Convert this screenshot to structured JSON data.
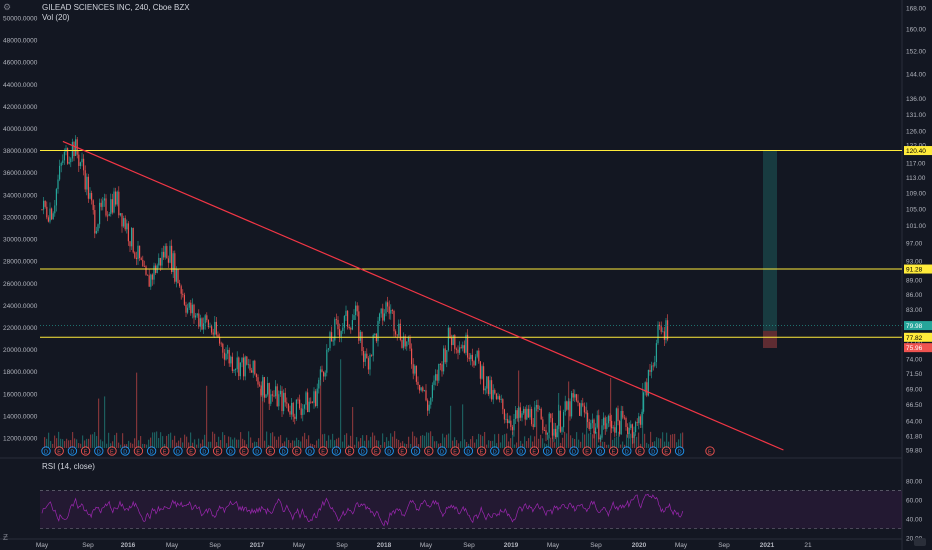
{
  "header": {
    "title": "GILEAD SCIENCES INC, 240, Cboe BZX",
    "vol": "Vol (20)"
  },
  "rsi": {
    "label": "RSI (14, close)"
  },
  "price_ticks": [
    "168.00",
    "160.00",
    "152.00",
    "144.00",
    "136.00",
    "131.00",
    "126.00",
    "122.00",
    "117.00",
    "113.00",
    "109.00",
    "105.00",
    "101.00",
    "97.00",
    "93.00",
    "89.00",
    "86.00",
    "83.00",
    "80.00",
    "77.00",
    "74.00",
    "71.50",
    "69.00",
    "66.50",
    "64.00",
    "61.80",
    "59.80"
  ],
  "volume_ticks": [
    "50000.0000",
    "48000.0000",
    "46000.0000",
    "44000.0000",
    "42000.0000",
    "40000.0000",
    "38000.0000",
    "36000.0000",
    "34000.0000",
    "32000.0000",
    "30000.0000",
    "28000.0000",
    "26000.0000",
    "24000.0000",
    "22000.0000",
    "20000.0000",
    "18000.0000",
    "16000.0000",
    "14000.0000",
    "12000.0000"
  ],
  "rsi_ticks": [
    "80.00",
    "60.00",
    "40.00",
    "20.00"
  ],
  "time_ticks": [
    "May",
    "Sep",
    "2016",
    "May",
    "Sep",
    "2017",
    "May",
    "Sep",
    "2018",
    "May",
    "Sep",
    "2019",
    "May",
    "Sep",
    "2020",
    "May",
    "Sep",
    "2021",
    "21"
  ],
  "price_badges": [
    {
      "text": "120.40",
      "color": "#ffeb3b",
      "text_color": "#000000"
    },
    {
      "text": "91.28",
      "color": "#ffeb3b",
      "text_color": "#000000"
    },
    {
      "text": "79.98",
      "color": "#26a69a",
      "text_color": "#ffffff"
    },
    {
      "text": "77.82",
      "color": "#ffeb3b",
      "text_color": "#000000"
    },
    {
      "text": "75.96",
      "color": "#ef5350",
      "text_color": "#ffffff"
    }
  ],
  "corner_icons": {
    "top_left": "settings-icon",
    "bottom_left": "zoom-icon"
  },
  "colors": {
    "background": "#131722",
    "up": "#26a69a",
    "down": "#ef5350",
    "horizontal_level": "#ffeb3b",
    "trendline": "#f23645",
    "rsi": "#9c27b0",
    "target_zone": "#26a69a"
  },
  "chart_data": {
    "type": "candlestick",
    "symbol": "GILEAD SCIENCES INC",
    "interval": "240",
    "exchange": "Cboe BZX",
    "price_axis": {
      "ticks": [
        168,
        160,
        152,
        144,
        136,
        131,
        126,
        122,
        117,
        113,
        109,
        105,
        101,
        97,
        93,
        89,
        86,
        83,
        80,
        77,
        74,
        71.5,
        69,
        66.5,
        64,
        61.8,
        59.8
      ],
      "scale": "log"
    },
    "horizontal_levels": [
      120.4,
      91.28,
      77.82
    ],
    "last_price": 79.98,
    "trendline": {
      "from": [
        "2015-06",
        123
      ],
      "to": [
        "2021-03",
        59.8
      ]
    },
    "close_series": [
      [
        "2015-05",
        105
      ],
      [
        "2015-06",
        118
      ],
      [
        "2015-07",
        122
      ],
      [
        "2015-08",
        115
      ],
      [
        "2015-09",
        102
      ],
      [
        "2015-11",
        108
      ],
      [
        "2016-01",
        95
      ],
      [
        "2016-02",
        88
      ],
      [
        "2016-04",
        96
      ],
      [
        "2016-06",
        83
      ],
      [
        "2016-08",
        80
      ],
      [
        "2016-10",
        74
      ],
      [
        "2016-12",
        72
      ],
      [
        "2017-02",
        68
      ],
      [
        "2017-04",
        66
      ],
      [
        "2017-06",
        67
      ],
      [
        "2017-08",
        79
      ],
      [
        "2017-10",
        82
      ],
      [
        "2017-11",
        73
      ],
      [
        "2018-01",
        84
      ],
      [
        "2018-03",
        76
      ],
      [
        "2018-05",
        66
      ],
      [
        "2018-07",
        78
      ],
      [
        "2018-09",
        76
      ],
      [
        "2018-11",
        68
      ],
      [
        "2019-01",
        64
      ],
      [
        "2019-03",
        65
      ],
      [
        "2019-05",
        63
      ],
      [
        "2019-07",
        67
      ],
      [
        "2019-09",
        63
      ],
      [
        "2019-11",
        64
      ],
      [
        "2020-01",
        63
      ],
      [
        "2020-02",
        70
      ],
      [
        "2020-03",
        78
      ],
      [
        "2020-04",
        80
      ]
    ],
    "volume_scale": {
      "min": 12000,
      "max": 50000
    },
    "rsi": {
      "length": 14,
      "source": "close",
      "levels": [
        70,
        30
      ],
      "ticks": [
        80,
        60,
        40,
        20
      ]
    },
    "x_labels": [
      "May",
      "Sep",
      "2016",
      "May",
      "Sep",
      "2017",
      "May",
      "Sep",
      "2018",
      "May",
      "Sep",
      "2019",
      "May",
      "Sep",
      "2020",
      "May",
      "Sep",
      "2021",
      "21"
    ]
  }
}
